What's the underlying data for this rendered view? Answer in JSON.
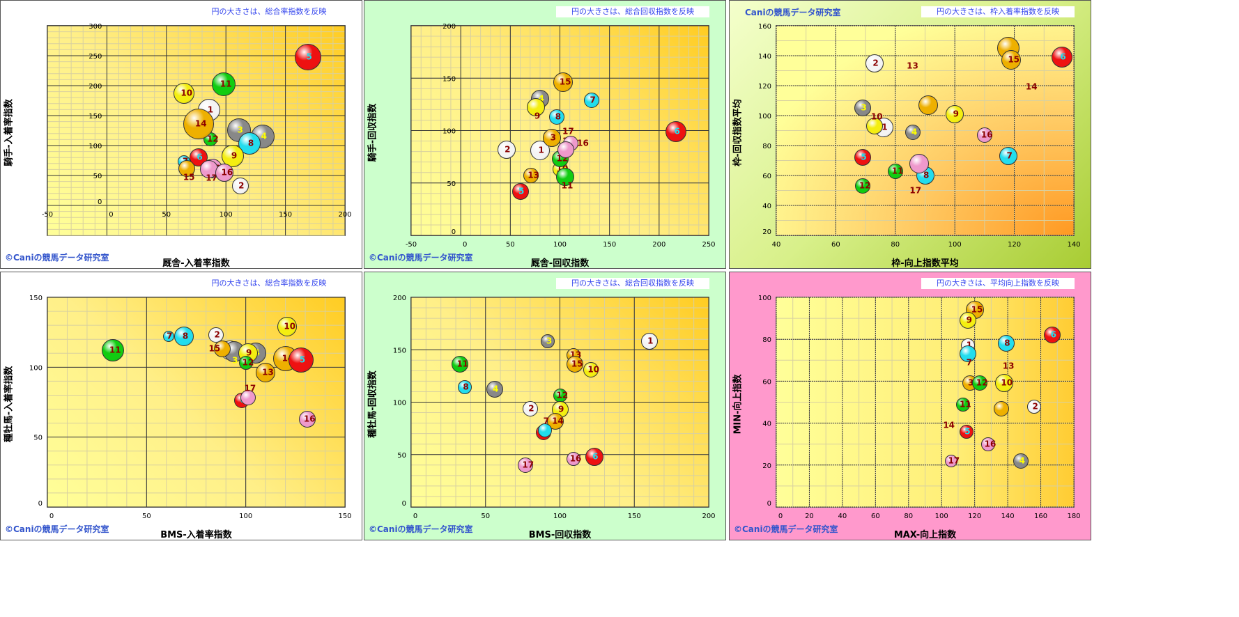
{
  "colors": {
    "white": "#f4f4f4",
    "gray": "#888888",
    "red": "#ee1111",
    "cyan": "#22ddee",
    "yellow": "#f4ee11",
    "green": "#11cc11",
    "gold": "#eeb000",
    "pink": "#ee99cc"
  },
  "label_colors": {
    "red": "#22ddee",
    "gray": "#ffff00",
    "default": "#8b0000"
  },
  "chart_data": [
    {
      "type": "scatter",
      "title": "円の大きさは、総合率指数を反映",
      "xlabel": "厩舎-入着率指数",
      "ylabel": "騎手-入着率指数",
      "copyright": "©Caniの競馬データ研究室",
      "xlim": [
        -50,
        200
      ],
      "xticks": [
        -50,
        0,
        50,
        100,
        150,
        200
      ],
      "xminor": 10,
      "ylim": [
        -50,
        300
      ],
      "yticks": [
        0,
        50,
        100,
        150,
        200,
        250,
        300
      ],
      "yminor": 10,
      "points": [
        [
          "1",
          86,
          159,
          128,
          "white"
        ],
        [
          "2",
          112,
          32,
          96,
          "white"
        ],
        [
          "3",
          111,
          126,
          136,
          "gray"
        ],
        [
          "4",
          131,
          115,
          136,
          "gray"
        ],
        [
          "5",
          169,
          248,
          152,
          "red"
        ],
        [
          "6",
          77,
          80,
          104,
          "red"
        ],
        [
          "7",
          65,
          73,
          72,
          "cyan"
        ],
        [
          "15",
          67,
          62,
          96,
          "gold"
        ],
        [
          "8",
          120,
          103,
          128,
          "cyan"
        ],
        [
          "9",
          106,
          82,
          128,
          "yellow"
        ],
        [
          "10",
          65,
          187,
          120,
          "yellow"
        ],
        [
          "11",
          98,
          202,
          136,
          "green"
        ],
        [
          "12",
          87,
          110,
          80,
          "green"
        ],
        [
          "14",
          77,
          136,
          176,
          "gold"
        ],
        [
          "13",
          89,
          62,
          112,
          "pink"
        ],
        [
          "17",
          86,
          61,
          104,
          "pink"
        ],
        [
          "16",
          99,
          55,
          104,
          "pink"
        ]
      ]
    },
    {
      "type": "scatter",
      "title": "円の大きさは、総合回収指数を反映",
      "xlabel": "厩舎-回収指数",
      "ylabel": "騎手-回収指数",
      "copyright": "©Caniの競馬データ研究室",
      "xlim": [
        -50,
        250
      ],
      "xticks": [
        -50,
        0,
        50,
        100,
        150,
        200,
        250
      ],
      "xminor": 10,
      "ylim": [
        0,
        200
      ],
      "yticks": [
        0,
        50,
        100,
        150,
        200
      ],
      "yminor": 10,
      "points": [
        [
          "1",
          80,
          81,
          112,
          "white"
        ],
        [
          "2",
          46,
          82,
          104,
          "white"
        ],
        [
          "3",
          92,
          93,
          104,
          "gold"
        ],
        [
          "4",
          80,
          130,
          104,
          "gray"
        ],
        [
          "5",
          60,
          42,
          96,
          "red"
        ],
        [
          "6",
          217,
          99,
          120,
          "red"
        ],
        [
          "7",
          132,
          129,
          88,
          "cyan"
        ],
        [
          "8",
          97,
          113,
          88,
          "cyan"
        ],
        [
          "9",
          76,
          122,
          104,
          "yellow"
        ],
        [
          "10",
          100,
          63,
          88,
          "yellow"
        ],
        [
          "12",
          100,
          73,
          96,
          "green"
        ],
        [
          "11",
          105,
          56,
          104,
          "green"
        ],
        [
          "13",
          71,
          57,
          88,
          "gold"
        ],
        [
          "14",
          106,
          90,
          0,
          null
        ],
        [
          "15",
          103,
          146,
          112,
          "gold"
        ],
        [
          "16",
          111,
          88,
          88,
          "pink"
        ],
        [
          "17",
          106,
          82,
          96,
          "pink"
        ]
      ]
    },
    {
      "type": "scatter",
      "title": "円の大きさは、枠入着率指数を反映",
      "xlabel": "枠-向上指数平均",
      "ylabel": "枠-回収指数平均",
      "copyright": "Caniの競馬データ研究室",
      "xlim": [
        40,
        140
      ],
      "xticks": [
        40,
        60,
        80,
        100,
        120,
        140
      ],
      "xminor": 10,
      "ylim": [
        20,
        160
      ],
      "yticks": [
        20,
        40,
        60,
        80,
        100,
        120,
        140,
        160
      ],
      "yminor": 10,
      "points": [
        [
          "2",
          73,
          135,
          104,
          "white"
        ],
        [
          "1",
          76,
          92,
          112,
          "white"
        ],
        [
          "3",
          69,
          105,
          96,
          "gray"
        ],
        [
          "4",
          86,
          89,
          88,
          "gray"
        ],
        [
          "5",
          69,
          72,
          96,
          "red"
        ],
        [
          "6",
          136,
          139,
          120,
          "red"
        ],
        [
          "7",
          118,
          73,
          104,
          "cyan"
        ],
        [
          "",
          91,
          107,
          112,
          "gold"
        ],
        [
          "8",
          90,
          60,
          104,
          "cyan"
        ],
        [
          "9",
          100,
          101,
          104,
          "yellow"
        ],
        [
          "10",
          73,
          93,
          96,
          "yellow"
        ],
        [
          "11",
          80,
          63,
          88,
          "green"
        ],
        [
          "12",
          69,
          53,
          88,
          "green"
        ],
        [
          "13",
          85,
          133,
          0,
          null
        ],
        [
          "14",
          125,
          119,
          0,
          null
        ],
        [
          "",
          118,
          145,
          128,
          "gold"
        ],
        [
          "15",
          119,
          137,
          112,
          "gold"
        ],
        [
          "16",
          110,
          87,
          88,
          "pink"
        ],
        [
          "",
          88,
          68,
          112,
          "pink"
        ],
        [
          "17",
          86,
          50,
          0,
          null
        ]
      ]
    },
    {
      "type": "scatter",
      "title": "円の大きさは、総合率指数を反映",
      "xlabel": "BMS-入着率指数",
      "ylabel": "種牡馬-入着率指数",
      "copyright": "©Caniの競馬データ研究室",
      "xlim": [
        0,
        150
      ],
      "xticks": [
        0,
        50,
        100,
        150
      ],
      "xminor": 10,
      "ylim": [
        0,
        150
      ],
      "yticks": [
        0,
        50,
        100,
        150
      ],
      "yminor": 10,
      "points": [
        [
          "7",
          61,
          122,
          64,
          "cyan"
        ],
        [
          "8",
          69,
          122,
          112,
          "cyan"
        ],
        [
          "2",
          85,
          123,
          88,
          "white"
        ],
        [
          "1",
          92,
          112,
          112,
          "white"
        ],
        [
          "3",
          94,
          111,
          120,
          "gray"
        ],
        [
          "4",
          105,
          110,
          120,
          "gray"
        ],
        [
          "9",
          101,
          110,
          112,
          "yellow"
        ],
        [
          "15",
          88,
          113,
          96,
          "gold"
        ],
        [
          "12",
          100,
          103,
          80,
          "green"
        ],
        [
          "10",
          121,
          129,
          112,
          "yellow"
        ],
        [
          "14",
          120,
          106,
          144,
          "gold"
        ],
        [
          "5",
          128,
          105,
          144,
          "red"
        ],
        [
          "13",
          110,
          96,
          112,
          "gold"
        ],
        [
          "11",
          33,
          112,
          128,
          "green"
        ],
        [
          "6",
          98,
          76,
          88,
          "red"
        ],
        [
          "17",
          101,
          78,
          88,
          "pink"
        ],
        [
          "16",
          131,
          63,
          96,
          "pink"
        ]
      ]
    },
    {
      "type": "scatter",
      "title": "円の大きさは、総合回収指数を反映",
      "xlabel": "BMS-回収指数",
      "ylabel": "種牡馬-回収指数",
      "copyright": "©Caniの競馬データ研究室",
      "xlim": [
        0,
        200
      ],
      "xticks": [
        0,
        50,
        100,
        150,
        200
      ],
      "xminor": 10,
      "ylim": [
        0,
        200
      ],
      "yticks": [
        0,
        50,
        100,
        150,
        200
      ],
      "yminor": 10,
      "points": [
        [
          "1",
          160,
          158,
          96,
          "white"
        ],
        [
          "11",
          33,
          136,
          96,
          "green"
        ],
        [
          "3",
          92,
          158,
          80,
          "gray"
        ],
        [
          "13",
          109,
          145,
          80,
          "gold"
        ],
        [
          "15",
          110,
          136,
          96,
          "gold"
        ],
        [
          "10",
          121,
          131,
          88,
          "yellow"
        ],
        [
          "8",
          36,
          114,
          80,
          "cyan"
        ],
        [
          "4",
          56,
          112,
          96,
          "gray"
        ],
        [
          "12",
          100,
          106,
          80,
          "green"
        ],
        [
          "2",
          80,
          94,
          88,
          "white"
        ],
        [
          "9",
          100,
          93,
          96,
          "yellow"
        ],
        [
          "14",
          97,
          82,
          96,
          "gold"
        ],
        [
          "5",
          89,
          71,
          88,
          "red"
        ],
        [
          "7",
          90,
          73,
          80,
          "cyan"
        ],
        [
          "17",
          77,
          40,
          88,
          "pink"
        ],
        [
          "16",
          109,
          46,
          80,
          "pink"
        ],
        [
          "6",
          123,
          48,
          104,
          "red"
        ]
      ]
    },
    {
      "type": "scatter",
      "title": "円の大きさは、平均向上指数を反映",
      "xlabel": "MAX-向上指数",
      "ylabel": "MIN-向上指数",
      "copyright": "©Caniの競馬データ研究室",
      "xlim": [
        0,
        180
      ],
      "xticks": [
        0,
        20,
        40,
        60,
        80,
        100,
        120,
        140,
        160,
        180
      ],
      "xminor": 10,
      "ylim": [
        0,
        100
      ],
      "yticks": [
        0,
        20,
        40,
        60,
        80,
        100
      ],
      "yminor": 10,
      "points": [
        [
          "15",
          120,
          94,
          104,
          "gold"
        ],
        [
          "9",
          116,
          89,
          96,
          "yellow"
        ],
        [
          "6",
          167,
          82,
          96,
          "red"
        ],
        [
          "1",
          116,
          77,
          80,
          "white"
        ],
        [
          "8",
          139,
          78,
          96,
          "cyan"
        ],
        [
          "7",
          116,
          73,
          96,
          "cyan"
        ],
        [
          "13",
          139,
          67,
          0,
          null
        ],
        [
          "3",
          117,
          59,
          88,
          "gold"
        ],
        [
          "12",
          123,
          59,
          88,
          "green"
        ],
        [
          "10",
          138,
          59,
          104,
          "yellow"
        ],
        [
          "11",
          113,
          49,
          80,
          "green"
        ],
        [
          "",
          136,
          47,
          88,
          "gold"
        ],
        [
          "2",
          156,
          48,
          80,
          "white"
        ],
        [
          "14",
          103,
          39,
          0,
          null
        ],
        [
          "5",
          115,
          36,
          80,
          "red"
        ],
        [
          "16",
          128,
          30,
          80,
          "pink"
        ],
        [
          "17",
          106,
          22,
          72,
          "pink"
        ],
        [
          "4",
          148,
          22,
          88,
          "gray"
        ]
      ]
    }
  ]
}
